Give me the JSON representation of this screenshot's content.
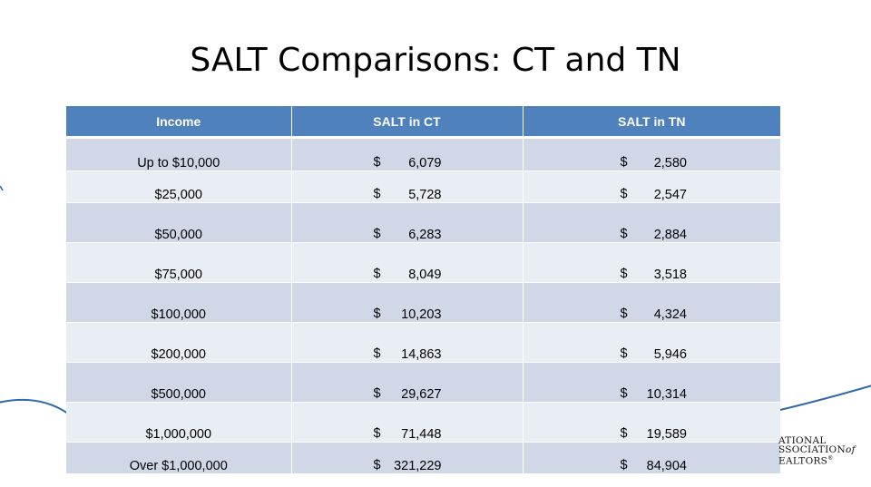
{
  "slide": {
    "title": "SALT Comparisons: CT and TN"
  },
  "table": {
    "headers": [
      "Income",
      "SALT in CT",
      "SALT in TN"
    ],
    "currency_symbol": "$",
    "rows": [
      {
        "income": "Up to $10,000",
        "ct": "6,079",
        "tn": "2,580"
      },
      {
        "income": "$25,000",
        "ct": "5,728",
        "tn": "2,547"
      },
      {
        "income": "$50,000",
        "ct": "6,283",
        "tn": "2,884"
      },
      {
        "income": "$75,000",
        "ct": "8,049",
        "tn": "3,518"
      },
      {
        "income": "$100,000",
        "ct": "10,203",
        "tn": "4,324"
      },
      {
        "income": "$200,000",
        "ct": "14,863",
        "tn": "5,946"
      },
      {
        "income": "$500,000",
        "ct": "29,627",
        "tn": "10,314"
      },
      {
        "income": "$1,000,000",
        "ct": "71,448",
        "tn": "19,589"
      },
      {
        "income": "Over $1,000,000",
        "ct": "321,229",
        "tn": "84,904"
      }
    ]
  },
  "logo": {
    "line1": "ATIONAL",
    "line2": "SSOCIATION",
    "line2_suffix": "of",
    "line3": "EALTORS",
    "line3_mark": "®"
  },
  "colors": {
    "header_fill": "#4f81bd",
    "row_band_dark": "#d0d8e8",
    "row_band_light": "#e9edf4",
    "curve_stroke": "#2e6aa8"
  }
}
